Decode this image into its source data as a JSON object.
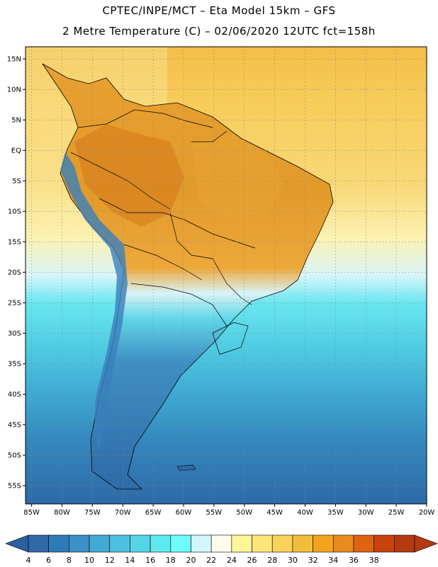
{
  "header": {
    "title_line1": "CPTEC/INPE/MCT –  Eta Model 15km – GFS",
    "title_line2": "2 Metre Temperature (C) – 02/06/2020 12UTC fct=158h"
  },
  "map": {
    "lon_range": [
      -86,
      -20
    ],
    "lat_range": [
      -58,
      17
    ],
    "lat_ticks": [
      {
        "lat": 15,
        "label": "15N"
      },
      {
        "lat": 10,
        "label": "10N"
      },
      {
        "lat": 5,
        "label": "5N"
      },
      {
        "lat": 0,
        "label": "EQ"
      },
      {
        "lat": -5,
        "label": "5S"
      },
      {
        "lat": -10,
        "label": "10S"
      },
      {
        "lat": -15,
        "label": "15S"
      },
      {
        "lat": -20,
        "label": "20S"
      },
      {
        "lat": -25,
        "label": "25S"
      },
      {
        "lat": -30,
        "label": "30S"
      },
      {
        "lat": -35,
        "label": "35S"
      },
      {
        "lat": -40,
        "label": "40S"
      },
      {
        "lat": -45,
        "label": "45S"
      },
      {
        "lat": -50,
        "label": "50S"
      },
      {
        "lat": -55,
        "label": "55S"
      }
    ],
    "lon_ticks": [
      {
        "lon": -85,
        "label": "85W"
      },
      {
        "lon": -80,
        "label": "80W"
      },
      {
        "lon": -75,
        "label": "75W"
      },
      {
        "lon": -70,
        "label": "70W"
      },
      {
        "lon": -65,
        "label": "65W"
      },
      {
        "lon": -60,
        "label": "60W"
      },
      {
        "lon": -55,
        "label": "55W"
      },
      {
        "lon": -50,
        "label": "50W"
      },
      {
        "lon": -45,
        "label": "45W"
      },
      {
        "lon": -40,
        "label": "40W"
      },
      {
        "lon": -35,
        "label": "35W"
      },
      {
        "lon": -30,
        "label": "30W"
      },
      {
        "lon": -25,
        "label": "25W"
      },
      {
        "lon": -20,
        "label": "20W"
      }
    ]
  },
  "colorbar": {
    "labels": [
      "4",
      "6",
      "8",
      "10",
      "12",
      "14",
      "16",
      "18",
      "20",
      "22",
      "24",
      "26",
      "28",
      "30",
      "32",
      "34",
      "36",
      "38"
    ],
    "colors": [
      "#3168a8",
      "#2d7bb7",
      "#3b91c6",
      "#44a8d4",
      "#4fbfdf",
      "#55d4e8",
      "#5ee9ef",
      "#6efcfc",
      "#d2f6fb",
      "#fefcea",
      "#fdf59a",
      "#fde57a",
      "#f9d25c",
      "#f0bd3c",
      "#f2a51c",
      "#ea8b1e",
      "#de6414",
      "#c9430c",
      "#b43a10"
    ],
    "tip_low_color": "#2b5f9e",
    "tip_high_color": "#b23a12"
  },
  "chart_data": {
    "type": "heatmap",
    "title": "2 Metre Temperature (C) – 02/06/2020 12UTC fct=158h",
    "model": "CPTEC/INPE/MCT – Eta Model 15km – GFS",
    "x_range": [
      -86,
      -20
    ],
    "y_range": [
      -58,
      17
    ],
    "color_levels": [
      4,
      6,
      8,
      10,
      12,
      14,
      16,
      18,
      20,
      22,
      24,
      26,
      28,
      30,
      32,
      34,
      36,
      38
    ],
    "grid": true
  }
}
